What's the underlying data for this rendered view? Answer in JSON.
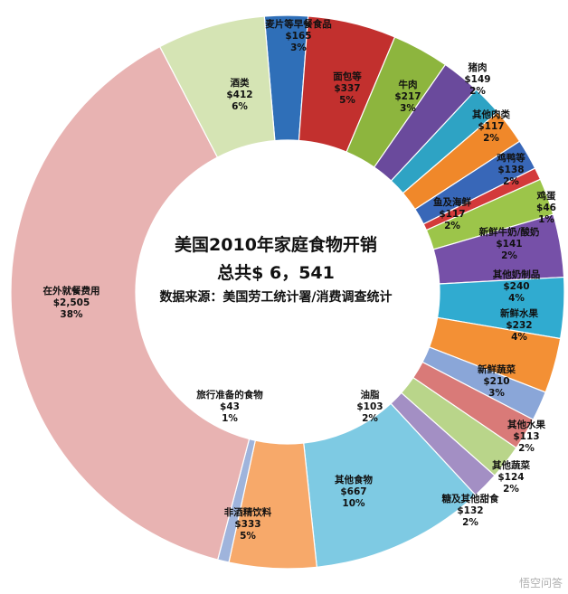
{
  "chart_data": {
    "type": "pie",
    "title": "美国2010年家庭食物开销",
    "subtitle": "总共$ 6，541",
    "source_note": "数据来源：美国劳工统计署/消费调查统计",
    "series": [
      {
        "name": "麦片等早餐食品",
        "value": 165,
        "amount": "$165",
        "pct": "3%",
        "color": "#2f6fb8"
      },
      {
        "name": "面包等",
        "value": 337,
        "amount": "$337",
        "pct": "5%",
        "color": "#c2302e"
      },
      {
        "name": "牛肉",
        "value": 217,
        "amount": "$217",
        "pct": "3%",
        "color": "#8db53e"
      },
      {
        "name": "猪肉",
        "value": 149,
        "amount": "$149",
        "pct": "2%",
        "color": "#6a4a9c"
      },
      {
        "name": "其他肉类",
        "value": 117,
        "amount": "$117",
        "pct": "2%",
        "color": "#2ea3c4"
      },
      {
        "name": "鸡鸭等",
        "value": 138,
        "amount": "$138",
        "pct": "2%",
        "color": "#f0882a"
      },
      {
        "name": "鱼及海鲜",
        "value": 117,
        "amount": "$117",
        "pct": "2%",
        "color": "#3867b8"
      },
      {
        "name": "鸡蛋",
        "value": 46,
        "amount": "$46",
        "pct": "1%",
        "color": "#d33a3a"
      },
      {
        "name": "新鲜牛奶/酸奶",
        "value": 141,
        "amount": "$141",
        "pct": "2%",
        "color": "#9cc54a"
      },
      {
        "name": "其他奶制品",
        "value": 240,
        "amount": "$240",
        "pct": "4%",
        "color": "#7650a8"
      },
      {
        "name": "新鲜水果",
        "value": 232,
        "amount": "$232",
        "pct": "4%",
        "color": "#30abd0"
      },
      {
        "name": "新鲜蔬菜",
        "value": 210,
        "amount": "$210",
        "pct": "3%",
        "color": "#f39035"
      },
      {
        "name": "其他水果",
        "value": 113,
        "amount": "$113",
        "pct": "2%",
        "color": "#8aa6d8"
      },
      {
        "name": "其他蔬菜",
        "value": 124,
        "amount": "$124",
        "pct": "2%",
        "color": "#d97a78"
      },
      {
        "name": "糖及其他甜食",
        "value": 132,
        "amount": "$132",
        "pct": "2%",
        "color": "#b9d58a"
      },
      {
        "name": "油脂",
        "value": 103,
        "amount": "$103",
        "pct": "2%",
        "color": "#a38fc4"
      },
      {
        "name": "其他食物",
        "value": 667,
        "amount": "$667",
        "pct": "10%",
        "color": "#7ecae3"
      },
      {
        "name": "非酒精饮料",
        "value": 333,
        "amount": "$333",
        "pct": "5%",
        "color": "#f7a96a"
      },
      {
        "name": "旅行准备的食物",
        "value": 43,
        "amount": "$43",
        "pct": "1%",
        "color": "#9fb4dc"
      },
      {
        "name": "在外就餐费用",
        "value": 2505,
        "amount": "$2,505",
        "pct": "38%",
        "color": "#e8b3b2"
      },
      {
        "name": "酒类",
        "value": 412,
        "amount": "$412",
        "pct": "6%",
        "color": "#d5e4b4"
      }
    ],
    "legend": "none"
  },
  "watermark": "悟空问答"
}
